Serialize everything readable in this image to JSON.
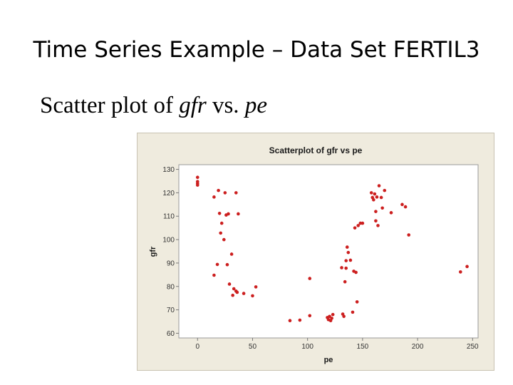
{
  "slide": {
    "title": "Time Series Example – Data Set FERTIL3",
    "subtitle_prefix": "Scatter plot of ",
    "subtitle_var1": "gfr",
    "subtitle_mid": " vs. ",
    "subtitle_var2": "pe"
  },
  "colors": {
    "marker": "#cc1f1f",
    "panel": "#efebde",
    "plot_area": "#ffffff"
  },
  "chart_data": {
    "type": "scatter",
    "title": "Scatterplot of gfr vs pe",
    "xlabel": "pe",
    "ylabel": "gfr",
    "xlim": [
      -17,
      255
    ],
    "ylim": [
      58,
      132
    ],
    "xticks": [
      0,
      50,
      100,
      150,
      200,
      250
    ],
    "yticks": [
      60,
      70,
      80,
      90,
      100,
      110,
      120,
      130
    ],
    "grid": false,
    "legend": "none",
    "series": [
      {
        "points": [
          [
            0,
            126.6
          ],
          [
            0,
            124.8
          ],
          [
            0,
            124.0
          ],
          [
            0,
            123.3
          ],
          [
            15,
            118.2
          ],
          [
            15,
            84.8
          ],
          [
            18,
            89.4
          ],
          [
            19,
            121.0
          ],
          [
            20,
            111.2
          ],
          [
            21,
            102.8
          ],
          [
            22,
            107.0
          ],
          [
            24,
            100.0
          ],
          [
            25,
            120.0
          ],
          [
            26,
            110.5
          ],
          [
            27,
            89.3
          ],
          [
            28,
            111.0
          ],
          [
            29,
            81.0
          ],
          [
            31,
            93.8
          ],
          [
            32,
            76.2
          ],
          [
            33,
            79.0
          ],
          [
            35,
            78.0
          ],
          [
            35,
            120.0
          ],
          [
            36,
            77.5
          ],
          [
            37,
            111.0
          ],
          [
            42,
            77.0
          ],
          [
            50,
            76.0
          ],
          [
            53,
            79.8
          ],
          [
            84,
            65.4
          ],
          [
            93,
            65.6
          ],
          [
            102,
            83.4
          ],
          [
            102,
            67.5
          ],
          [
            118,
            66.7
          ],
          [
            119,
            65.8
          ],
          [
            120,
            67.2
          ],
          [
            121,
            65.4
          ],
          [
            122,
            66.4
          ],
          [
            123,
            68.0
          ],
          [
            131,
            88.0
          ],
          [
            132,
            68.2
          ],
          [
            133,
            67.2
          ],
          [
            134,
            82.0
          ],
          [
            135,
            87.8
          ],
          [
            135,
            91.0
          ],
          [
            136,
            96.8
          ],
          [
            137,
            94.5
          ],
          [
            139,
            91.2
          ],
          [
            141,
            69.0
          ],
          [
            142,
            86.5
          ],
          [
            143,
            105.0
          ],
          [
            144,
            86.0
          ],
          [
            145,
            73.4
          ],
          [
            146,
            106.0
          ],
          [
            148,
            107.0
          ],
          [
            150,
            107.0
          ],
          [
            158,
            120.0
          ],
          [
            159,
            118.0
          ],
          [
            160,
            117.0
          ],
          [
            161,
            119.5
          ],
          [
            162,
            112.0
          ],
          [
            162,
            108.0
          ],
          [
            163,
            118.2
          ],
          [
            164,
            106.0
          ],
          [
            165,
            123.0
          ],
          [
            167,
            118.0
          ],
          [
            168,
            113.5
          ],
          [
            170,
            121.0
          ],
          [
            176,
            111.5
          ],
          [
            186,
            115.0
          ],
          [
            189,
            114.0
          ],
          [
            192,
            102.0
          ],
          [
            239,
            86.2
          ],
          [
            245,
            88.5
          ]
        ]
      }
    ]
  }
}
